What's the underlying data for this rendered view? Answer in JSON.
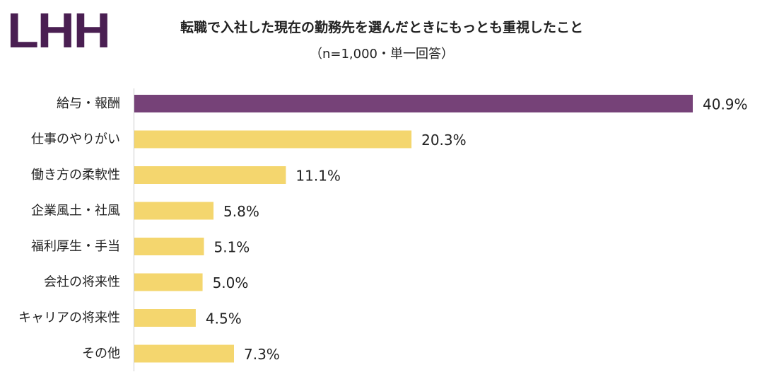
{
  "logo": "LHH",
  "chart_data": {
    "type": "bar",
    "orientation": "horizontal",
    "title": "転職で入社した現在の勤務先を選んだときにもっとも重視したこと",
    "subtitle": "（n=1,000・単一回答）",
    "categories": [
      "給与・報酬",
      "仕事のやりがい",
      "働き方の柔軟性",
      "企業風土・社風",
      "福利厚生・手当",
      "会社の将来性",
      "キャリアの将来性",
      "その他"
    ],
    "values": [
      40.9,
      20.3,
      11.1,
      5.8,
      5.1,
      5.0,
      4.5,
      7.3
    ],
    "value_labels": [
      "40.9%",
      "20.3%",
      "11.1%",
      "5.8%",
      "5.1%",
      "5.0%",
      "4.5%",
      "7.3%"
    ],
    "unit": "%",
    "xlim": [
      0,
      40.9
    ],
    "grid": false,
    "legend": "none",
    "colors": {
      "highlight": "#764278",
      "default": "#f4d66e",
      "axis": "#cccccc"
    }
  }
}
